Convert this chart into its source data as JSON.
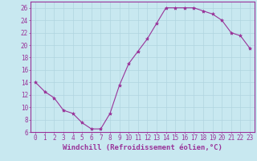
{
  "x_values": [
    0,
    1,
    2,
    3,
    4,
    5,
    6,
    7,
    8,
    9,
    10,
    11,
    12,
    13,
    14,
    15,
    16,
    17,
    18,
    19,
    20,
    21,
    22,
    23
  ],
  "y_values": [
    14,
    12.5,
    11.5,
    9.5,
    9,
    7.5,
    6.5,
    6.5,
    9,
    13.5,
    17,
    19,
    21,
    23.5,
    26,
    26,
    26,
    26,
    25.5,
    25,
    24,
    22,
    21.5,
    19.5
  ],
  "line_color": "#993399",
  "marker": "*",
  "marker_size": 3,
  "bg_color": "#c8e8f0",
  "grid_color": "#b0d4e0",
  "xlabel": "Windchill (Refroidissement éolien,°C)",
  "ylim": [
    6,
    27
  ],
  "xlim": [
    -0.5,
    23.5
  ],
  "yticks": [
    6,
    8,
    10,
    12,
    14,
    16,
    18,
    20,
    22,
    24,
    26
  ],
  "xticks": [
    0,
    1,
    2,
    3,
    4,
    5,
    6,
    7,
    8,
    9,
    10,
    11,
    12,
    13,
    14,
    15,
    16,
    17,
    18,
    19,
    20,
    21,
    22,
    23
  ],
  "axis_color": "#993399",
  "tick_label_fontsize": 5.5,
  "xlabel_fontsize": 6.5
}
